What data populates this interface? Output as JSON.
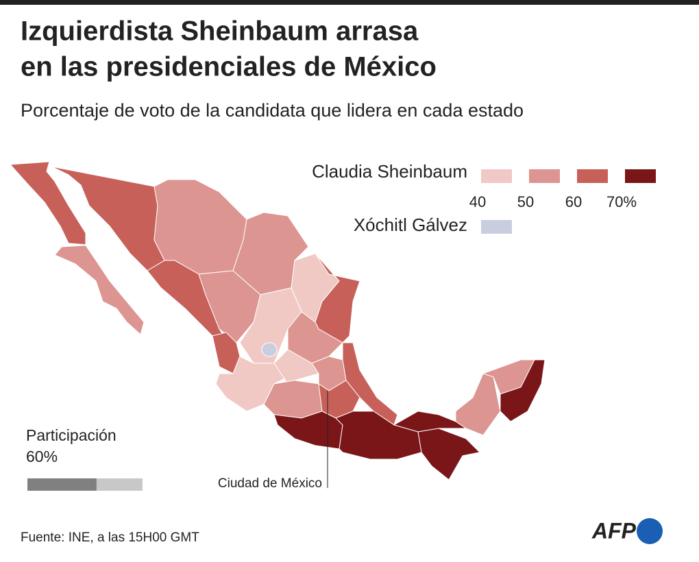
{
  "header": {
    "title_lines": [
      "Izquierdista Sheinbaum arrasa",
      "en las presidenciales de México"
    ],
    "subtitle": "Porcentaje de voto de la candidata que lidera en cada estado"
  },
  "legend": {
    "candidates": [
      {
        "name": "Claudia Sheinbaum",
        "colors": [
          "#f0c9c4",
          "#dc9590",
          "#c8605a",
          "#7a1518"
        ]
      },
      {
        "name": "Xóchitl Gálvez",
        "colors": [
          "#c8cde0"
        ]
      }
    ],
    "ticks": [
      40,
      50,
      60,
      {
        "value": 70,
        "label": "70%"
      }
    ]
  },
  "participation": {
    "label": "Participación",
    "value": 60,
    "value_label": "60%"
  },
  "map": {
    "annotation": "Ciudad de México"
  },
  "footer": {
    "source": "Fuente: INE, a las 15H00 GMT",
    "logo": "AFP"
  }
}
